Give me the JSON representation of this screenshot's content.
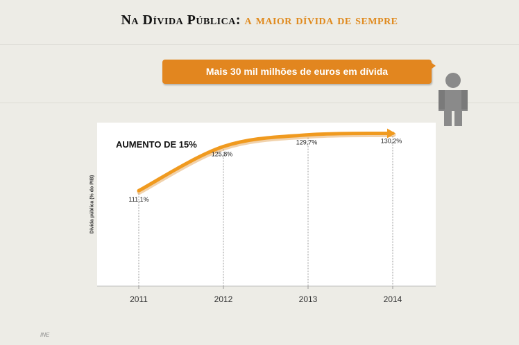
{
  "title": {
    "part1": "Na Dívida Pública:",
    "part2": "a maior dívida de sempre"
  },
  "callout": {
    "text": "Mais 30 mil milhões de euros em dívida"
  },
  "chart_data": {
    "type": "line",
    "annotation": "AUMENTO DE 15%",
    "ylabel": "Dívida pública (% do PIB)",
    "xlabel": "",
    "categories": [
      "2011",
      "2012",
      "2013",
      "2014"
    ],
    "values": [
      111.1,
      125.8,
      129.7,
      130.2
    ],
    "data_labels": [
      "111,1%",
      "125,8%",
      "129,7%",
      "130,2%"
    ],
    "ylim": [
      80,
      140
    ],
    "grid": false,
    "line_color": "#f09a1f"
  },
  "footer": {
    "source": "INE"
  },
  "colors": {
    "accent": "#e08a1e",
    "background": "#edece6"
  }
}
